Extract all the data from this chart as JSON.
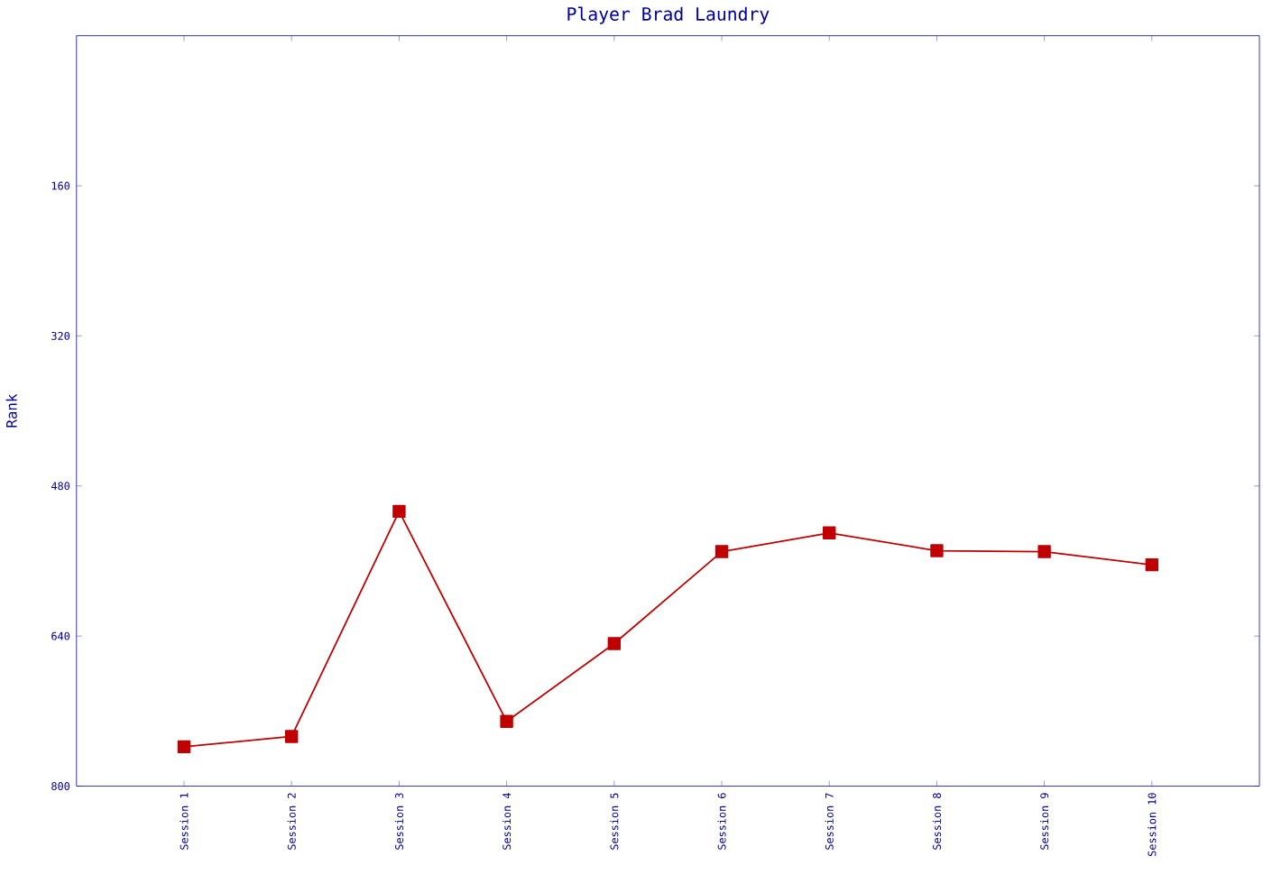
{
  "chart_data": {
    "type": "line",
    "title": "Player Brad Laundry",
    "ylabel": "Rank",
    "categories": [
      "Session 1",
      "Session 2",
      "Session 3",
      "Session 4",
      "Session 5",
      "Session 6",
      "Session 7",
      "Session 8",
      "Session 9",
      "Session 10"
    ],
    "series": [
      {
        "color": "#c00000",
        "values": [
          758,
          747,
          507,
          731,
          648,
          550,
          530,
          549,
          550,
          564
        ]
      }
    ],
    "ylim": [
      800,
      0
    ],
    "yticks": [
      160,
      320,
      480,
      640,
      800
    ],
    "marker": "square",
    "line_style": "solid",
    "grid": false
  }
}
